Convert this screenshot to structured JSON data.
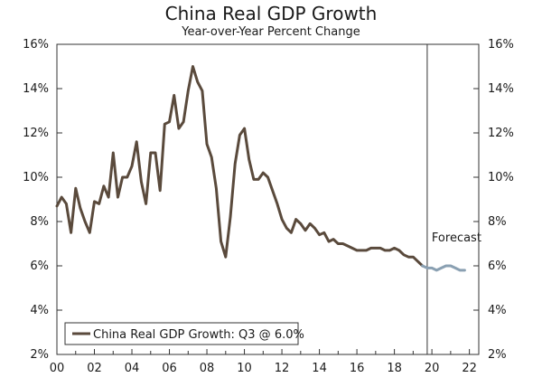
{
  "chart_data": {
    "type": "line",
    "title": "China Real GDP Growth",
    "subtitle": "Year-over-Year Percent Change",
    "xlabel": "",
    "ylabel": "",
    "x_tick_labels": [
      "00",
      "02",
      "04",
      "06",
      "08",
      "10",
      "12",
      "14",
      "16",
      "18",
      "20",
      "22"
    ],
    "y_tick_labels": [
      "2%",
      "4%",
      "6%",
      "8%",
      "10%",
      "12%",
      "14%",
      "16%"
    ],
    "xlim": [
      2000,
      2022.5
    ],
    "ylim": [
      2,
      16
    ],
    "forecast_start": 2019.75,
    "annotation": "Forecast",
    "legend": {
      "placement": "bottom-left",
      "label": "China Real GDP Growth: Q3 @ 6.0%"
    },
    "series": [
      {
        "name": "China Real GDP Growth: Q3 @ 6.0%",
        "color": "#5a4a3c",
        "points": [
          [
            2000.0,
            8.7
          ],
          [
            2000.25,
            9.1
          ],
          [
            2000.5,
            8.8
          ],
          [
            2000.75,
            7.5
          ],
          [
            2001.0,
            9.5
          ],
          [
            2001.25,
            8.6
          ],
          [
            2001.5,
            8.0
          ],
          [
            2001.75,
            7.5
          ],
          [
            2002.0,
            8.9
          ],
          [
            2002.25,
            8.8
          ],
          [
            2002.5,
            9.6
          ],
          [
            2002.75,
            9.1
          ],
          [
            2003.0,
            11.1
          ],
          [
            2003.25,
            9.1
          ],
          [
            2003.5,
            10.0
          ],
          [
            2003.75,
            10.0
          ],
          [
            2004.0,
            10.5
          ],
          [
            2004.25,
            11.6
          ],
          [
            2004.5,
            9.8
          ],
          [
            2004.75,
            8.8
          ],
          [
            2005.0,
            11.1
          ],
          [
            2005.25,
            11.1
          ],
          [
            2005.5,
            9.4
          ],
          [
            2005.75,
            12.4
          ],
          [
            2006.0,
            12.5
          ],
          [
            2006.25,
            13.7
          ],
          [
            2006.5,
            12.2
          ],
          [
            2006.75,
            12.5
          ],
          [
            2007.0,
            13.9
          ],
          [
            2007.25,
            15.0
          ],
          [
            2007.5,
            14.3
          ],
          [
            2007.75,
            13.9
          ],
          [
            2008.0,
            11.5
          ],
          [
            2008.25,
            10.9
          ],
          [
            2008.5,
            9.5
          ],
          [
            2008.75,
            7.1
          ],
          [
            2009.0,
            6.4
          ],
          [
            2009.25,
            8.2
          ],
          [
            2009.5,
            10.6
          ],
          [
            2009.75,
            11.9
          ],
          [
            2010.0,
            12.2
          ],
          [
            2010.25,
            10.8
          ],
          [
            2010.5,
            9.9
          ],
          [
            2010.75,
            9.9
          ],
          [
            2011.0,
            10.2
          ],
          [
            2011.25,
            10.0
          ],
          [
            2011.5,
            9.4
          ],
          [
            2011.75,
            8.8
          ],
          [
            2012.0,
            8.1
          ],
          [
            2012.25,
            7.7
          ],
          [
            2012.5,
            7.5
          ],
          [
            2012.75,
            8.1
          ],
          [
            2013.0,
            7.9
          ],
          [
            2013.25,
            7.6
          ],
          [
            2013.5,
            7.9
          ],
          [
            2013.75,
            7.7
          ],
          [
            2014.0,
            7.4
          ],
          [
            2014.25,
            7.5
          ],
          [
            2014.5,
            7.1
          ],
          [
            2014.75,
            7.2
          ],
          [
            2015.0,
            7.0
          ],
          [
            2015.25,
            7.0
          ],
          [
            2015.5,
            6.9
          ],
          [
            2015.75,
            6.8
          ],
          [
            2016.0,
            6.7
          ],
          [
            2016.25,
            6.7
          ],
          [
            2016.5,
            6.7
          ],
          [
            2016.75,
            6.8
          ],
          [
            2017.0,
            6.8
          ],
          [
            2017.25,
            6.8
          ],
          [
            2017.5,
            6.7
          ],
          [
            2017.75,
            6.7
          ],
          [
            2018.0,
            6.8
          ],
          [
            2018.25,
            6.7
          ],
          [
            2018.5,
            6.5
          ],
          [
            2018.75,
            6.4
          ],
          [
            2019.0,
            6.4
          ],
          [
            2019.25,
            6.2
          ],
          [
            2019.5,
            6.0
          ]
        ]
      },
      {
        "name": "Forecast",
        "color": "#8aa0b2",
        "points": [
          [
            2019.5,
            6.0
          ],
          [
            2019.75,
            5.9
          ],
          [
            2020.0,
            5.9
          ],
          [
            2020.25,
            5.8
          ],
          [
            2020.5,
            5.9
          ],
          [
            2020.75,
            6.0
          ],
          [
            2021.0,
            6.0
          ],
          [
            2021.25,
            5.9
          ],
          [
            2021.5,
            5.8
          ],
          [
            2021.75,
            5.8
          ]
        ]
      }
    ]
  }
}
